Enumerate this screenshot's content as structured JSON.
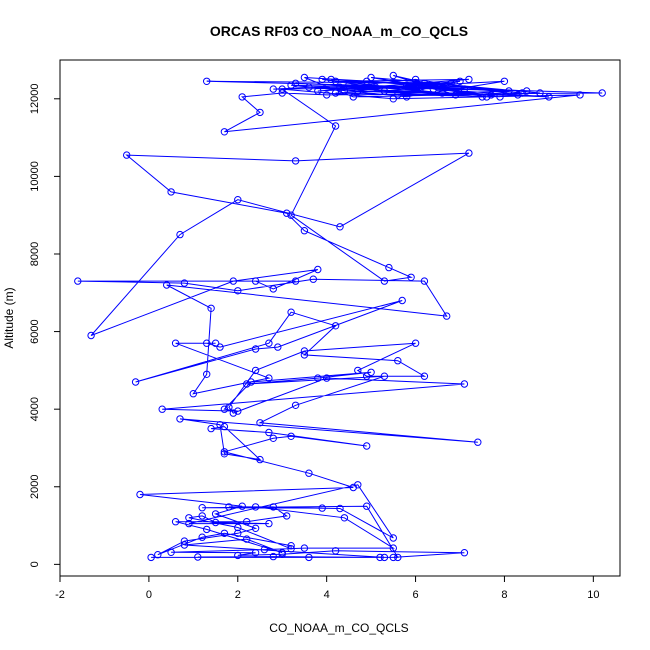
{
  "chart_data": {
    "type": "line",
    "title": "ORCAS RF03 CO_NOAA_m_CO_QCLS",
    "xlabel": "CO_NOAA_m_CO_QCLS",
    "ylabel": "Altitude (m)",
    "xlim": [
      -2,
      10.6
    ],
    "ylim": [
      -300,
      13000
    ],
    "xticks": [
      "-2",
      "0",
      "2",
      "4",
      "6",
      "8",
      "10"
    ],
    "yticks": [
      "0",
      "2000",
      "4000",
      "6000",
      "8000",
      "10000",
      "12000"
    ],
    "grid": false,
    "legend": "none",
    "colors": {
      "series": "#0000ff",
      "axis": "#000000"
    },
    "series": [
      {
        "marker": "open-circle",
        "points": [
          [
            0.05,
            180
          ],
          [
            3.6,
            180
          ],
          [
            5.2,
            180
          ],
          [
            1.1,
            190
          ],
          [
            2.8,
            200
          ],
          [
            5.5,
            180
          ],
          [
            7.1,
            300
          ],
          [
            4.2,
            350
          ],
          [
            3.0,
            260
          ],
          [
            2.0,
            230
          ],
          [
            2.4,
            300
          ],
          [
            0.5,
            310
          ],
          [
            2.6,
            380
          ],
          [
            3.5,
            420
          ],
          [
            5.5,
            420
          ],
          [
            4.4,
            1200
          ],
          [
            2.4,
            1480
          ],
          [
            3.9,
            1450
          ],
          [
            1.2,
            1460
          ],
          [
            4.9,
            1500
          ],
          [
            5.6,
            180
          ],
          [
            5.3,
            180
          ],
          [
            0.8,
            500
          ],
          [
            2.2,
            650
          ],
          [
            3.0,
            300
          ],
          [
            1.3,
            900
          ],
          [
            0.6,
            1100
          ],
          [
            2.2,
            1100
          ],
          [
            3.1,
            1250
          ],
          [
            2.8,
            1480
          ],
          [
            1.8,
            1480
          ],
          [
            4.3,
            1440
          ],
          [
            5.5,
            680
          ],
          [
            4.7,
            2050
          ],
          [
            0.9,
            1050
          ],
          [
            2.7,
            1050
          ],
          [
            1.5,
            1080
          ],
          [
            1.2,
            1250
          ],
          [
            0.9,
            1200
          ],
          [
            2.0,
            950
          ],
          [
            3.2,
            400
          ],
          [
            3.2,
            480
          ],
          [
            1.7,
            800
          ],
          [
            1.2,
            700
          ],
          [
            0.2,
            250
          ],
          [
            0.8,
            600
          ],
          [
            2.0,
            800
          ],
          [
            2.4,
            930
          ],
          [
            1.5,
            1300
          ],
          [
            2.1,
            1500
          ],
          [
            -0.2,
            1800
          ],
          [
            4.6,
            1980
          ],
          [
            3.6,
            2350
          ],
          [
            1.7,
            2900
          ],
          [
            2.8,
            3250
          ],
          [
            3.2,
            3300
          ],
          [
            4.9,
            3050
          ],
          [
            2.7,
            3400
          ],
          [
            1.4,
            3500
          ],
          [
            1.7,
            3550
          ],
          [
            2.5,
            2700
          ],
          [
            1.7,
            2850
          ],
          [
            1.6,
            3600
          ],
          [
            0.7,
            3750
          ],
          [
            7.4,
            3150
          ],
          [
            2.5,
            3650
          ],
          [
            3.3,
            4100
          ],
          [
            5.3,
            4850
          ],
          [
            2.2,
            4650
          ],
          [
            3.8,
            4800
          ],
          [
            5.0,
            4950
          ],
          [
            2.3,
            4700
          ],
          [
            1.7,
            4000
          ],
          [
            2.0,
            3950
          ],
          [
            0.3,
            4000
          ],
          [
            7.1,
            4650
          ],
          [
            4.0,
            4800
          ],
          [
            1.9,
            3900
          ],
          [
            1.8,
            4050
          ],
          [
            2.4,
            5000
          ],
          [
            3.5,
            5500
          ],
          [
            6.0,
            5700
          ],
          [
            4.7,
            5000
          ],
          [
            4.9,
            4850
          ],
          [
            6.2,
            4850
          ],
          [
            5.6,
            5250
          ],
          [
            3.5,
            5400
          ],
          [
            4.2,
            6150
          ],
          [
            3.2,
            6500
          ],
          [
            2.7,
            5700
          ],
          [
            -0.3,
            4700
          ],
          [
            2.4,
            5550
          ],
          [
            2.9,
            5600
          ],
          [
            5.7,
            6800
          ],
          [
            1.6,
            5600
          ],
          [
            1.3,
            5700
          ],
          [
            1.5,
            5700
          ],
          [
            0.6,
            5700
          ],
          [
            2.7,
            4800
          ],
          [
            1.0,
            4400
          ],
          [
            1.3,
            4900
          ],
          [
            1.4,
            6600
          ],
          [
            0.4,
            7200
          ],
          [
            6.7,
            6400
          ],
          [
            6.2,
            7300
          ],
          [
            3.7,
            7350
          ],
          [
            2.0,
            7050
          ],
          [
            0.8,
            7250
          ],
          [
            -1.6,
            7300
          ],
          [
            3.3,
            7300
          ],
          [
            2.4,
            7300
          ],
          [
            2.8,
            7100
          ],
          [
            3.8,
            7600
          ],
          [
            1.9,
            7300
          ],
          [
            -1.3,
            5900
          ],
          [
            0.7,
            8500
          ],
          [
            2.0,
            9400
          ],
          [
            4.3,
            8700
          ],
          [
            7.2,
            10600
          ],
          [
            3.3,
            10400
          ],
          [
            -0.5,
            10550
          ],
          [
            0.5,
            9600
          ],
          [
            3.1,
            9050
          ],
          [
            3.5,
            8600
          ],
          [
            5.4,
            7650
          ],
          [
            5.9,
            7400
          ],
          [
            5.3,
            7300
          ],
          [
            3.2,
            9000
          ],
          [
            4.2,
            11300
          ],
          [
            3.0,
            12250
          ],
          [
            5.5,
            12000
          ],
          [
            9.7,
            12100
          ],
          [
            1.7,
            11150
          ],
          [
            2.5,
            11650
          ],
          [
            2.1,
            12050
          ],
          [
            3.0,
            12150
          ],
          [
            4.0,
            12100
          ],
          [
            10.2,
            12150
          ],
          [
            4.5,
            12350
          ],
          [
            2.8,
            12250
          ],
          [
            6.5,
            12300
          ],
          [
            1.3,
            12450
          ],
          [
            6.8,
            12400
          ],
          [
            4.2,
            12450
          ],
          [
            7.2,
            12500
          ],
          [
            3.8,
            12200
          ],
          [
            8.0,
            12450
          ],
          [
            5.8,
            12050
          ],
          [
            3.2,
            12350
          ],
          [
            8.5,
            12200
          ],
          [
            4.1,
            12500
          ],
          [
            6.5,
            12350
          ],
          [
            3.5,
            12550
          ],
          [
            4.6,
            12050
          ],
          [
            8.8,
            12150
          ],
          [
            5.0,
            12550
          ],
          [
            7.6,
            12050
          ],
          [
            5.5,
            12600
          ],
          [
            6.9,
            12100
          ],
          [
            4.3,
            12300
          ],
          [
            6.0,
            12500
          ],
          [
            8.3,
            12100
          ],
          [
            5.3,
            12200
          ],
          [
            9.0,
            12050
          ],
          [
            6.4,
            12250
          ],
          [
            7.7,
            12100
          ],
          [
            3.6,
            12300
          ],
          [
            7.1,
            12250
          ],
          [
            4.9,
            12450
          ],
          [
            8.4,
            12150
          ],
          [
            6.2,
            12400
          ],
          [
            4.7,
            12200
          ],
          [
            7.5,
            12050
          ],
          [
            5.1,
            12300
          ],
          [
            3.9,
            12500
          ],
          [
            6.6,
            12150
          ],
          [
            4.4,
            12200
          ],
          [
            7.0,
            12450
          ],
          [
            5.6,
            12100
          ],
          [
            8.1,
            12200
          ],
          [
            3.3,
            12400
          ],
          [
            6.1,
            12250
          ],
          [
            4.2,
            12150
          ],
          [
            7.9,
            12050
          ],
          [
            5.8,
            12350
          ]
        ]
      }
    ]
  }
}
